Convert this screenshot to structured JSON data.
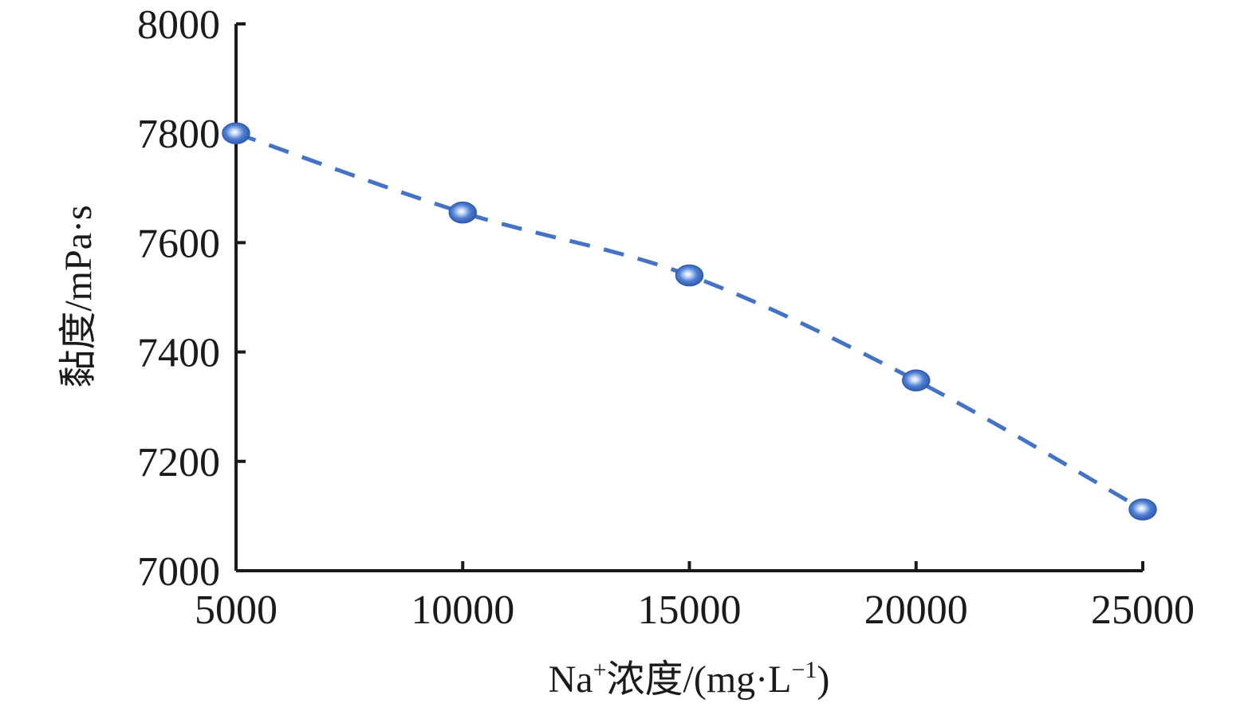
{
  "chart_data": {
    "type": "line",
    "xlabel_parts": {
      "prefix": "Na",
      "superscript": "+",
      "middle": "浓度/(mg·L",
      "unit_superscript": "−1",
      "suffix": ")"
    },
    "ylabel": "黏度/mPa·s",
    "x": [
      5000,
      10000,
      15000,
      20000,
      25000
    ],
    "x_tick_labels": [
      "5000",
      "10000",
      "15000",
      "20000",
      "25000"
    ],
    "y_ticks": [
      7000,
      7200,
      7400,
      7600,
      7800,
      8000
    ],
    "y_tick_labels": [
      "7000",
      "7200",
      "7400",
      "7600",
      "7800",
      "8000"
    ],
    "xlim": [
      5000,
      25000
    ],
    "ylim": [
      7000,
      8000
    ],
    "grid": false,
    "series": [
      {
        "values": [
          7800,
          7655,
          7540,
          7348,
          7112
        ],
        "color": "#4472c4",
        "line_style": "dashed",
        "marker": "circle"
      }
    ]
  }
}
